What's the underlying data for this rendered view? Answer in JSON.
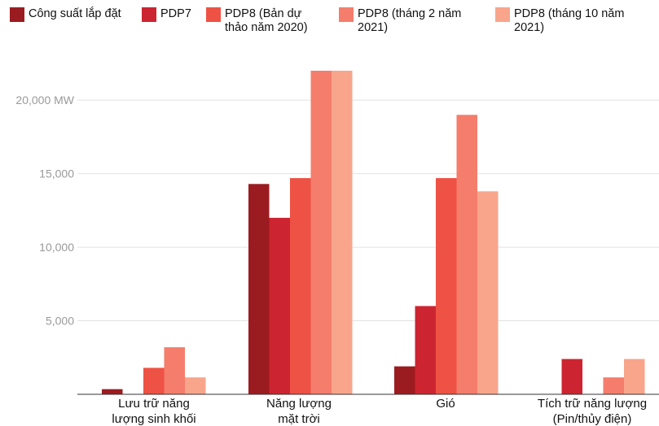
{
  "chart_data": {
    "type": "bar",
    "title": "",
    "xlabel": "",
    "ylabel": "",
    "y_unit": "MW",
    "ylim": [
      0,
      22000
    ],
    "y_ticks": [
      5000,
      10000,
      15000,
      20000
    ],
    "y_tick_labels": [
      "5,000",
      "10,000",
      "15,000",
      "20,000 MW"
    ],
    "grid": true,
    "legend_position": "top",
    "categories": [
      [
        "Lưu trữ năng",
        "lượng sinh khối"
      ],
      [
        "Năng lượng",
        "mặt trời"
      ],
      [
        "Gió"
      ],
      [
        "Tích trữ năng lượng",
        "(Pin/thủy điện)"
      ]
    ],
    "series": [
      {
        "name": [
          "Công suất lắp đặt"
        ],
        "color": "#9b1c20",
        "values": [
          350,
          14300,
          1900,
          0
        ]
      },
      {
        "name": [
          "PDP7"
        ],
        "color": "#cc2430",
        "values": [
          0,
          12000,
          6000,
          2400
        ]
      },
      {
        "name": [
          "PDP8 (Bản dự",
          "thảo năm 2020)"
        ],
        "color": "#ee5244",
        "values": [
          1800,
          14700,
          14700,
          0
        ]
      },
      {
        "name": [
          "PDP8 (tháng 2 năm",
          "2021)"
        ],
        "color": "#f47d6c",
        "values": [
          3200,
          22000,
          19000,
          1150
        ]
      },
      {
        "name": [
          "PDP8 (tháng 10 năm",
          "2021)"
        ],
        "color": "#f8a58c",
        "values": [
          1150,
          22000,
          13800,
          2400
        ]
      }
    ]
  }
}
